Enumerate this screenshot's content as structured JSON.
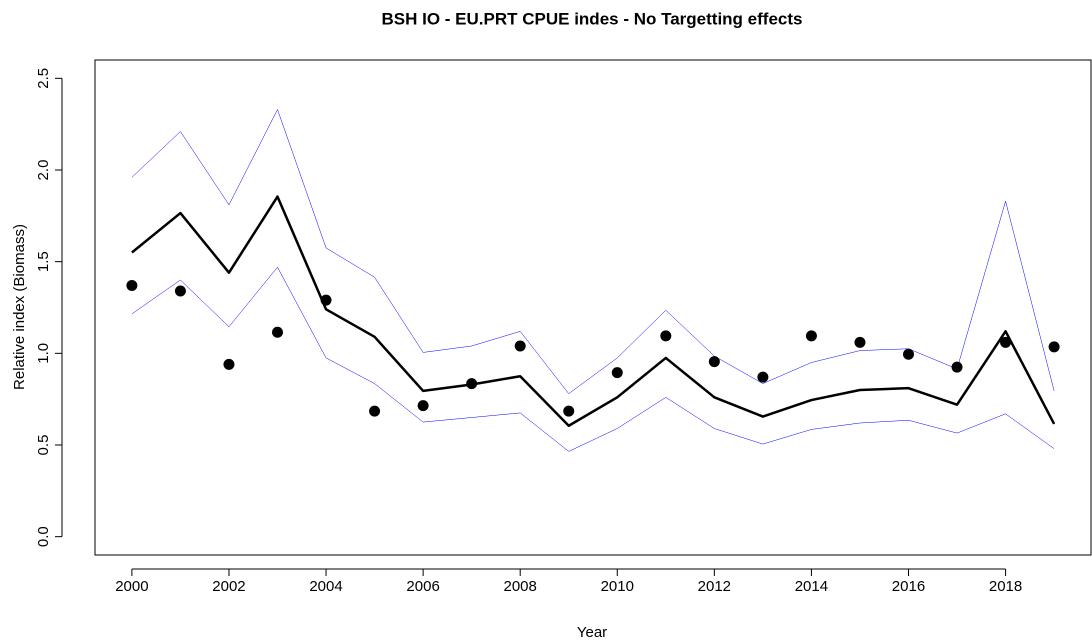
{
  "chart_data": {
    "type": "line",
    "title": "BSH IO - EU.PRT CPUE indes - No Targetting effects",
    "x_label": "Year",
    "y_label": "Relative index (Biomass)",
    "x": [
      2000,
      2001,
      2002,
      2003,
      2004,
      2005,
      2006,
      2007,
      2008,
      2009,
      2010,
      2011,
      2012,
      2013,
      2014,
      2015,
      2016,
      2017,
      2018,
      2019
    ],
    "series": [
      {
        "color": "#0000ff",
        "mode": "line",
        "width": 0.5,
        "values": [
          1.96,
          2.21,
          1.81,
          2.33,
          1.575,
          1.415,
          1.005,
          1.04,
          1.12,
          0.78,
          0.975,
          1.235,
          0.985,
          0.835,
          0.95,
          1.015,
          1.025,
          0.915,
          1.83,
          0.795
        ]
      },
      {
        "color": "#0000ff",
        "mode": "line",
        "width": 0.5,
        "values": [
          1.215,
          1.4,
          1.145,
          1.47,
          0.975,
          0.835,
          0.625,
          0.65,
          0.675,
          0.465,
          0.59,
          0.76,
          0.59,
          0.505,
          0.585,
          0.62,
          0.635,
          0.565,
          0.67,
          0.48
        ]
      },
      {
        "color": "#000000",
        "mode": "line",
        "width": 2.5,
        "values": [
          1.55,
          1.765,
          1.44,
          1.855,
          1.24,
          1.09,
          0.795,
          0.83,
          0.875,
          0.605,
          0.76,
          0.975,
          0.76,
          0.655,
          0.745,
          0.8,
          0.81,
          0.72,
          1.12,
          0.615
        ]
      },
      {
        "color": "#000000",
        "mode": "points",
        "width": 5.5,
        "values": [
          1.37,
          1.34,
          0.94,
          1.115,
          1.29,
          0.685,
          0.715,
          0.835,
          1.04,
          0.685,
          0.895,
          1.095,
          0.955,
          0.87,
          1.095,
          1.06,
          0.995,
          0.925,
          1.06,
          1.035
        ]
      }
    ],
    "xlim": [
      1999.24,
      2019.76
    ],
    "ylim": [
      -0.1,
      2.6
    ],
    "xticks": [
      2000,
      2002,
      2004,
      2006,
      2008,
      2010,
      2012,
      2014,
      2016,
      2018
    ],
    "yticks": [
      {
        "value": 0,
        "label": "0.0"
      },
      0.5,
      {
        "value": 1,
        "label": "1.0"
      },
      1.5,
      {
        "value": 2,
        "label": "2.0"
      },
      2.5
    ],
    "grid": false
  }
}
